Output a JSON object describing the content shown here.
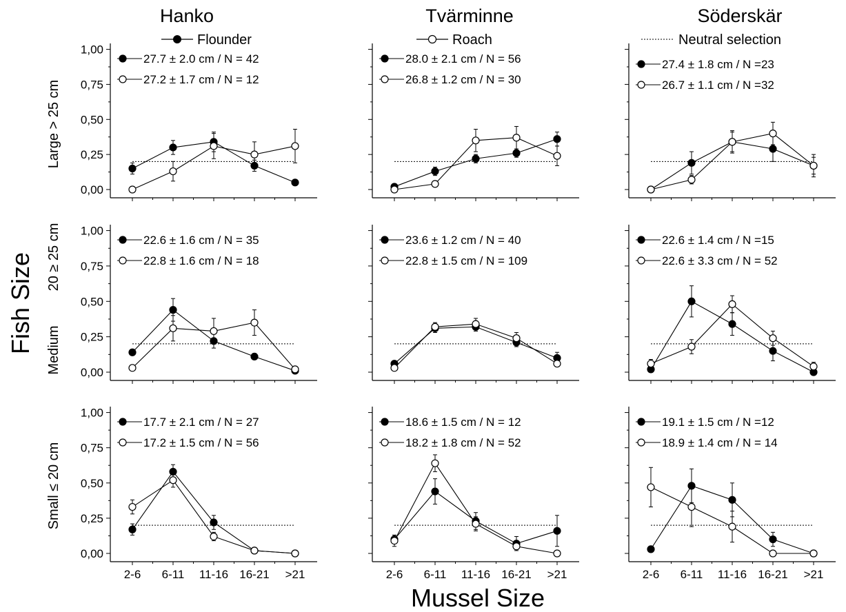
{
  "figure": {
    "ylabel": "Fish Size",
    "xlabel": "Mussel Size",
    "columns": [
      "Hanko",
      "Tvärminne",
      "Söderskär"
    ],
    "rows": [
      {
        "lines": [
          "Large > 25 cm"
        ]
      },
      {
        "lines": [
          "Medium",
          "20 ≥ 25 cm"
        ]
      },
      {
        "lines": [
          "Small ≤ 20 cm"
        ]
      }
    ],
    "legend": {
      "flounder": "Flounder",
      "roach": "Roach",
      "neutral": "Neutral selection"
    },
    "yticks": [
      "0,00",
      "0,25",
      "0,50",
      "0,75",
      "1,00"
    ],
    "xticks": [
      "2-6",
      "6-11",
      "11-16",
      "16-21",
      ">21"
    ]
  },
  "chart_data": {
    "type": "line",
    "categories": [
      "2-6",
      "6-11",
      "11-16",
      "16-21",
      ">21"
    ],
    "ylim": [
      0,
      1
    ],
    "neutral_selection": 0.2,
    "panels": [
      {
        "column": "Hanko",
        "row": "Large > 25 cm",
        "labels": [
          "27.7 ± 2.0 cm / N = 42",
          "27.2 ± 1.7 cm / N = 12"
        ],
        "series": [
          {
            "name": "Flounder",
            "values": [
              0.15,
              0.3,
              0.34,
              0.17,
              0.05
            ],
            "errors": [
              0.04,
              0.05,
              0.07,
              0.04,
              0
            ]
          },
          {
            "name": "Roach",
            "values": [
              0.0,
              0.13,
              0.31,
              0.25,
              0.31
            ],
            "errors": [
              0.02,
              0.07,
              0.09,
              0.09,
              0.12
            ]
          }
        ]
      },
      {
        "column": "Tvärminne",
        "row": "Large > 25 cm",
        "labels": [
          "28.0 ± 2.1 cm / N = 56",
          "26.8 ± 1.2 cm / N = 30"
        ],
        "series": [
          {
            "name": "Flounder",
            "values": [
              0.02,
              0.13,
              0.22,
              0.26,
              0.36
            ],
            "errors": [
              0.01,
              0.03,
              0.03,
              0.03,
              0.05
            ]
          },
          {
            "name": "Roach",
            "values": [
              0.0,
              0.04,
              0.35,
              0.37,
              0.24
            ],
            "errors": [
              0.01,
              0.01,
              0.08,
              0.08,
              0.07
            ]
          }
        ]
      },
      {
        "column": "Söderskär",
        "row": "Large > 25 cm",
        "labels": [
          "27.4 ± 1.8 cm / N =23",
          "26.7 ± 1.1 cm / N =32"
        ],
        "series": [
          {
            "name": "Flounder",
            "values": [
              0.0,
              0.19,
              0.34,
              0.29,
              0.17
            ],
            "errors": [
              0,
              0.08,
              0.07,
              0.09,
              0.06
            ]
          },
          {
            "name": "Roach",
            "values": [
              0.0,
              0.07,
              0.34,
              0.4,
              0.17
            ],
            "errors": [
              0.01,
              0.03,
              0.08,
              0.08,
              0.08
            ]
          }
        ]
      },
      {
        "column": "Hanko",
        "row": "Medium 20 ≥ 25 cm",
        "labels": [
          "22.6 ± 1.6 cm / N = 35",
          "22.8 ± 1.6 cm / N = 18"
        ],
        "series": [
          {
            "name": "Flounder",
            "values": [
              0.14,
              0.44,
              0.22,
              0.11,
              0.01
            ],
            "errors": [
              0,
              0.08,
              0.05,
              0,
              0
            ]
          },
          {
            "name": "Roach",
            "values": [
              0.03,
              0.31,
              0.29,
              0.35,
              0.02
            ],
            "errors": [
              0.02,
              0.09,
              0.09,
              0.09,
              0.02
            ]
          }
        ]
      },
      {
        "column": "Tvärminne",
        "row": "Medium 20 ≥ 25 cm",
        "labels": [
          "23.6 ± 1.2 cm  / N = 40",
          "22.8 ± 1.5 cm / N = 109"
        ],
        "series": [
          {
            "name": "Flounder",
            "values": [
              0.06,
              0.31,
              0.32,
              0.21,
              0.1
            ],
            "errors": [
              0,
              0.03,
              0.03,
              0.03,
              0.04
            ]
          },
          {
            "name": "Roach",
            "values": [
              0.03,
              0.32,
              0.34,
              0.24,
              0.06
            ],
            "errors": [
              0.01,
              0.03,
              0.04,
              0.04,
              0.02
            ]
          }
        ]
      },
      {
        "column": "Söderskär",
        "row": "Medium 20 ≥ 25 cm",
        "labels": [
          "22.6 ± 1.4 cm  / N =15",
          "22.6 ± 3.3 cm / N = 52"
        ],
        "series": [
          {
            "name": "Flounder",
            "values": [
              0.02,
              0.5,
              0.34,
              0.15,
              0.0
            ],
            "errors": [
              0,
              0.11,
              0.08,
              0.07,
              0
            ]
          },
          {
            "name": "Roach",
            "values": [
              0.06,
              0.18,
              0.48,
              0.24,
              0.04
            ],
            "errors": [
              0.03,
              0.05,
              0.06,
              0.05,
              0.03
            ]
          }
        ]
      },
      {
        "column": "Hanko",
        "row": "Small ≤ 20 cm",
        "labels": [
          "17.7 ± 2.1 cm / N = 27",
          "17.2 ± 1.5 cm / N = 56"
        ],
        "series": [
          {
            "name": "Flounder",
            "values": [
              0.17,
              0.58,
              0.22,
              0.02,
              0.0
            ],
            "errors": [
              0.04,
              0.05,
              0.05,
              0,
              0
            ]
          },
          {
            "name": "Roach",
            "values": [
              0.33,
              0.52,
              0.12,
              0.02,
              0.0
            ],
            "errors": [
              0.05,
              0.05,
              0.03,
              0,
              0
            ]
          }
        ]
      },
      {
        "column": "Tvärminne",
        "row": "Small ≤ 20 cm",
        "labels": [
          "18.6 ± 1.5 cm / N = 12",
          "18.2 ± 1.8 cm / N = 52"
        ],
        "series": [
          {
            "name": "Flounder",
            "values": [
              0.1,
              0.44,
              0.23,
              0.07,
              0.16
            ],
            "errors": [
              0.03,
              0.09,
              0.06,
              0.05,
              0.11
            ]
          },
          {
            "name": "Roach",
            "values": [
              0.09,
              0.64,
              0.21,
              0.05,
              0.0
            ],
            "errors": [
              0.04,
              0.06,
              0.05,
              0.02,
              0
            ]
          }
        ]
      },
      {
        "column": "Söderskär",
        "row": "Small ≤ 20 cm",
        "labels": [
          "19.1 ± 1.5 cm / N =12",
          "18.9 ± 1.4 cm / N = 14"
        ],
        "series": [
          {
            "name": "Flounder",
            "values": [
              0.03,
              0.48,
              0.38,
              0.1,
              0.0
            ],
            "errors": [
              0,
              0.12,
              0.12,
              0.05,
              0
            ]
          },
          {
            "name": "Roach",
            "values": [
              0.47,
              0.33,
              0.19,
              0.0,
              0.0
            ],
            "errors": [
              0.14,
              0.14,
              0.11,
              0,
              0
            ]
          }
        ]
      }
    ]
  }
}
